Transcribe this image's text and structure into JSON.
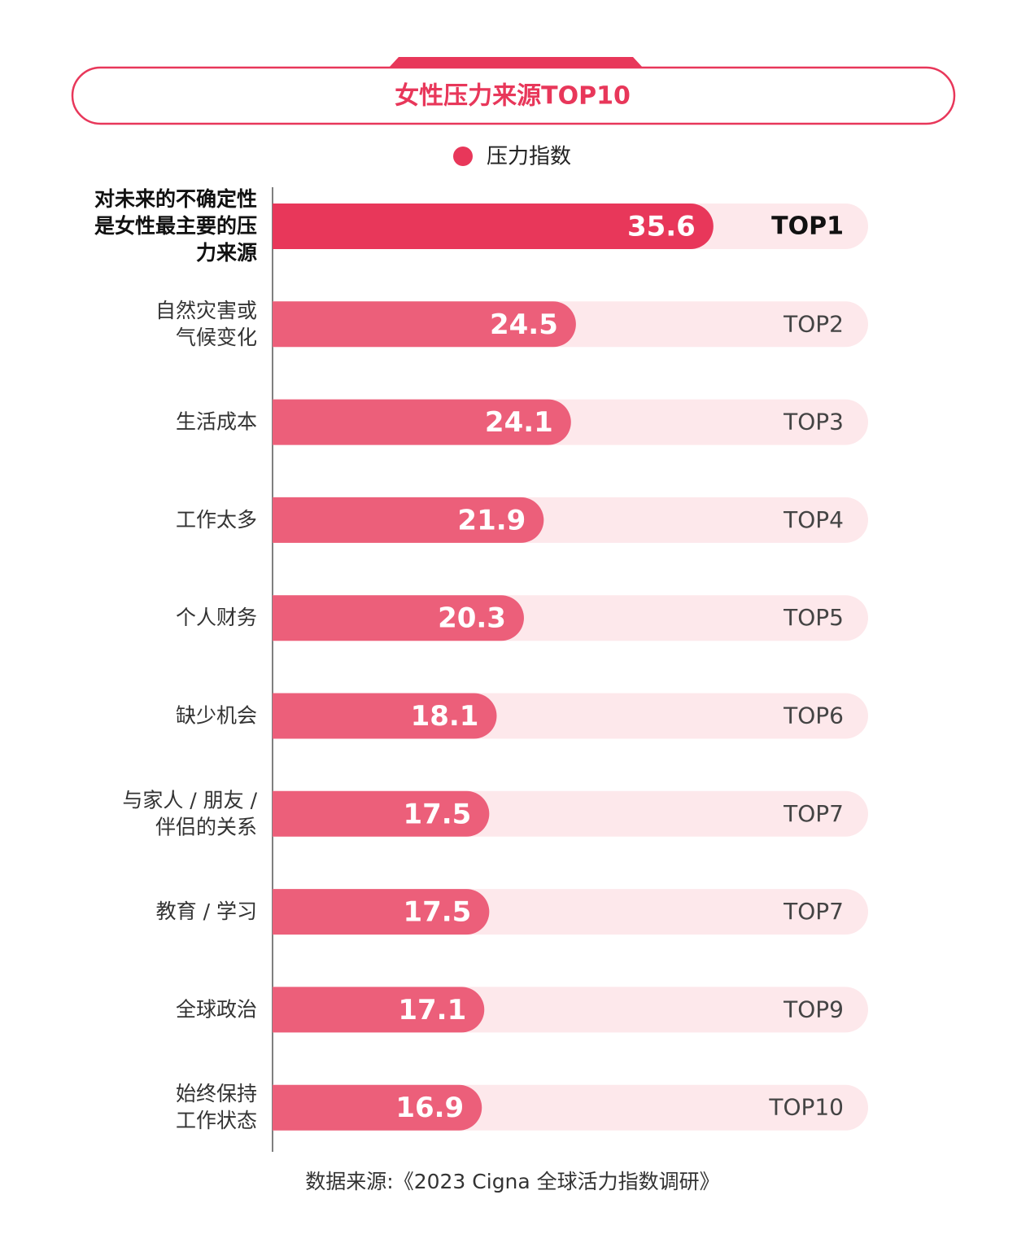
{
  "chart_data": {
    "type": "bar",
    "title": "女性压力来源TOP10",
    "categories": [
      [
        "对未来的不确定性",
        "是女性最主要的压",
        "力来源"
      ],
      [
        "自然灾害或",
        "气候变化"
      ],
      [
        "生活成本"
      ],
      [
        "工作太多"
      ],
      [
        "个人财务"
      ],
      [
        "缺少机会"
      ],
      [
        "与家人 / 朋友 /",
        "伴侣的关系"
      ],
      [
        "教育 / 学习"
      ],
      [
        "全球政治"
      ],
      [
        "始终保持",
        "工作状态"
      ]
    ],
    "series": [
      {
        "name": "压力指数",
        "color": "#e8375a",
        "values": [
          35.6,
          24.5,
          24.1,
          21.9,
          20.3,
          18.1,
          17.5,
          17.5,
          17.1,
          16.9
        ],
        "colors": [
          "#e8375a",
          "#ec5f7a",
          "#ec5f7a",
          "#ec5f7a",
          "#ec5f7a",
          "#ec5f7a",
          "#ec5f7a",
          "#ec5f7a",
          "#ec5f7a",
          "#ec5f7a"
        ]
      }
    ],
    "ranks": [
      "TOP1",
      "TOP2",
      "TOP3",
      "TOP4",
      "TOP5",
      "TOP6",
      "TOP7",
      "TOP7",
      "TOP9",
      "TOP10"
    ],
    "track_color": "#fde8eb",
    "source": "数据来源:《2023 Cigna 全球活力指数调研》"
  }
}
